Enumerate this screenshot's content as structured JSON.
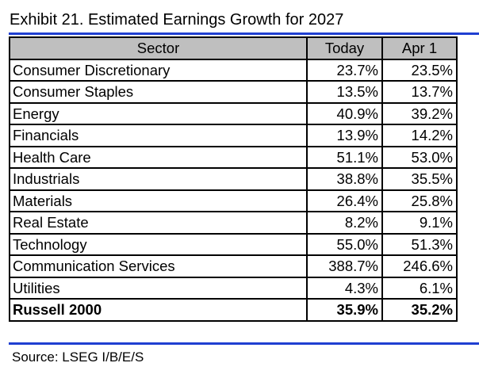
{
  "title": "Exhibit 21. Estimated Earnings Growth for 2027",
  "colors": {
    "rule": "#1f3fd1",
    "header_bg": "#bfbfbf",
    "border": "#000000"
  },
  "table": {
    "headers": [
      "Sector",
      "Today",
      "Apr 1"
    ],
    "rows": [
      [
        "Consumer Discretionary",
        "23.7%",
        "23.5%"
      ],
      [
        "Consumer Staples",
        "13.5%",
        "13.7%"
      ],
      [
        "Energy",
        "40.9%",
        "39.2%"
      ],
      [
        "Financials",
        "13.9%",
        "14.2%"
      ],
      [
        "Health Care",
        "51.1%",
        "53.0%"
      ],
      [
        "Industrials",
        "38.8%",
        "35.5%"
      ],
      [
        "Materials",
        "26.4%",
        "25.8%"
      ],
      [
        "Real Estate",
        "8.2%",
        "9.1%"
      ],
      [
        "Technology",
        "55.0%",
        "51.3%"
      ],
      [
        "Communication Services",
        "388.7%",
        "246.6%"
      ],
      [
        "Utilities",
        "4.3%",
        "6.1%"
      ]
    ],
    "total": [
      "Russell 2000",
      "35.9%",
      "35.2%"
    ]
  },
  "source": "Source: LSEG I/B/E/S"
}
